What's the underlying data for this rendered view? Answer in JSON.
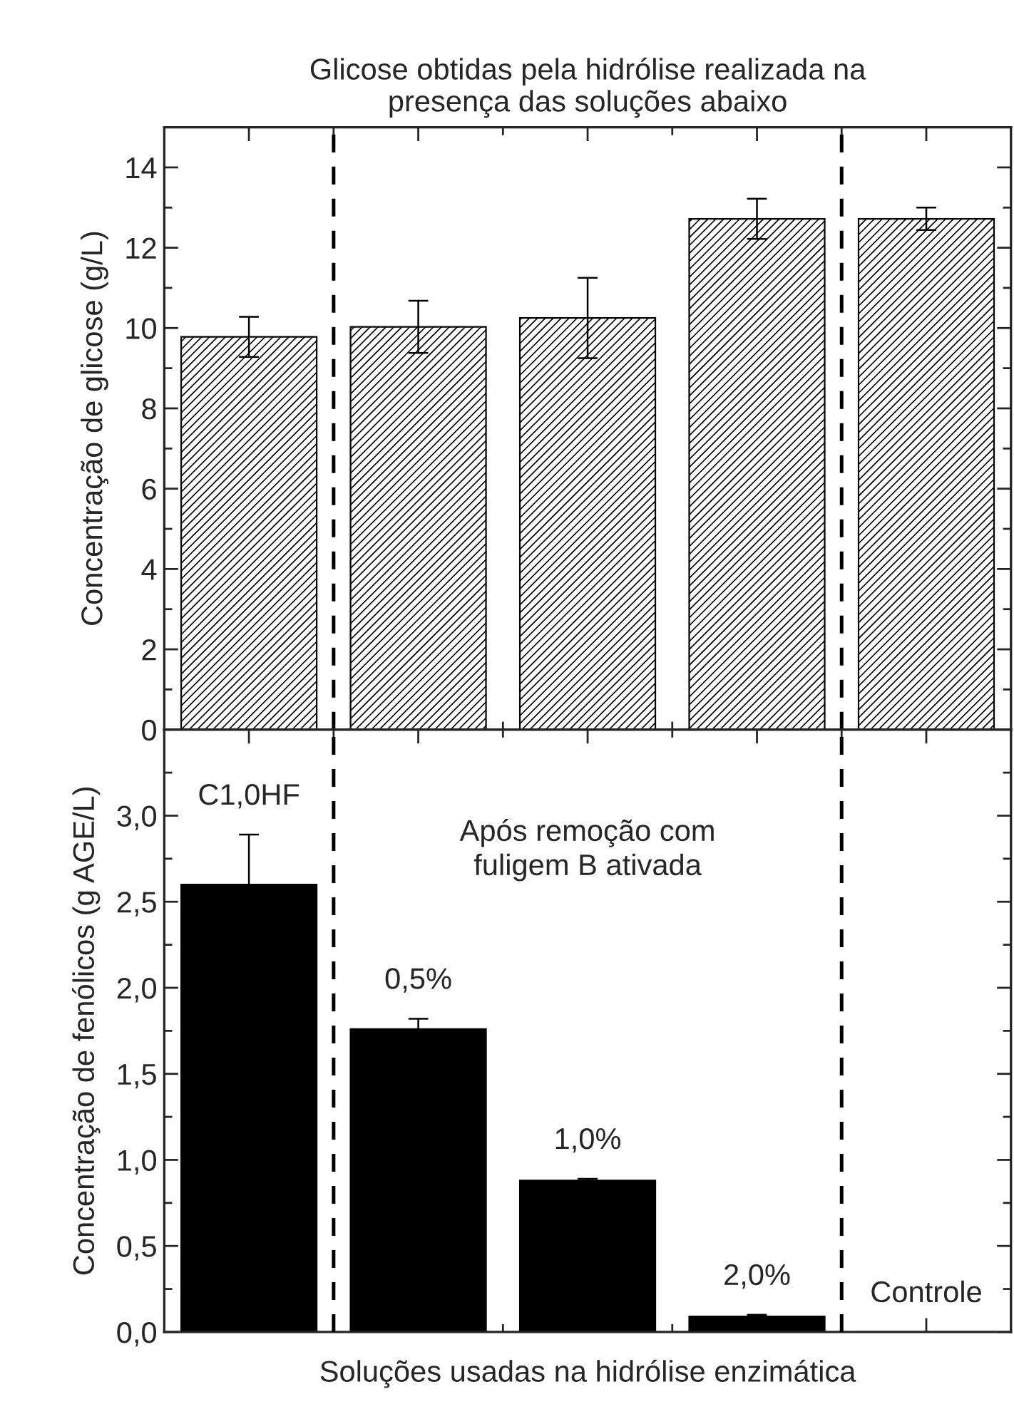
{
  "chart_data": [
    {
      "type": "bar",
      "title": "Glicose obtidas pela hidrólise realizada na\npresença das soluções abaixo",
      "ylabel": "Concentração de glicose (g/L)",
      "categories": [
        null,
        null,
        null,
        null,
        null
      ],
      "series": [
        {
          "color": "#000000",
          "values": [
            9.78,
            10.03,
            10.25,
            12.72,
            12.72
          ],
          "errors": [
            0.5,
            0.65,
            1.0,
            0.5,
            0.28
          ]
        }
      ],
      "ylim": [
        0,
        15
      ],
      "yticks": [
        0,
        2,
        4,
        6,
        8,
        10,
        12,
        14
      ],
      "tick_labels": "y",
      "grid": false,
      "legend": false
    },
    {
      "type": "bar",
      "ylabel": "Concentração de fenólicos (g AGE/L)",
      "xlabel": "Soluções usadas na hidrólise enzimática",
      "categories": [
        null,
        null,
        null,
        null,
        null
      ],
      "series": [
        {
          "color": "#000000",
          "values": [
            2.6,
            1.76,
            0.88,
            0.09,
            0
          ],
          "errors": [
            0.29,
            0.06,
            0.01,
            0.01,
            null
          ]
        }
      ],
      "ylim": [
        0,
        3.5
      ],
      "yticks": [
        {
          "value": 0,
          "label": "0,0"
        },
        {
          "value": 0.5,
          "label": "0,5"
        },
        {
          "value": 1,
          "label": "1,0"
        },
        {
          "value": 1.5,
          "label": "1,5"
        },
        {
          "value": 2,
          "label": "2,0"
        },
        {
          "value": 2.5,
          "label": "2,5"
        },
        {
          "value": 3,
          "label": "3,0"
        }
      ],
      "annotations": [
        {
          "text": "C1,0HF",
          "y": 2.6
        },
        "Após remoção com\nfuligem B ativada",
        {
          "text": "0,5%",
          "y": 1.76
        },
        {
          "text": "1,0%",
          "y": 0.88
        },
        {
          "text": "2,0%",
          "y": 0.09
        },
        {
          "text": "Controle",
          "y": 0
        }
      ],
      "tick_labels": "y",
      "grid": false,
      "legend": false
    }
  ]
}
